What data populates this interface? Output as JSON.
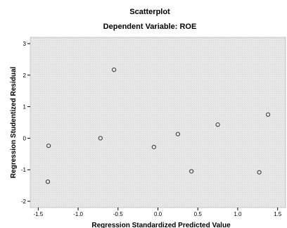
{
  "chart_data": {
    "type": "scatter",
    "title": "Scatterplot",
    "subtitle": "Dependent Variable: ROE",
    "xlabel": "Regression Standardized Predicted Value",
    "ylabel": "Regression Studentized Residual",
    "xlim": [
      -1.6,
      1.6
    ],
    "ylim": [
      -2.2,
      3.2
    ],
    "x_ticks": [
      -1.5,
      -1.0,
      -0.5,
      0.0,
      0.5,
      1.0,
      1.5
    ],
    "x_tick_labels": [
      "-1.5",
      "-1.0",
      "-0.5",
      "0.0",
      "0.5",
      "1.0",
      "1.5"
    ],
    "y_ticks": [
      -2,
      -1,
      0,
      1,
      2,
      3
    ],
    "y_tick_labels": [
      "-2",
      "-1",
      "0",
      "1",
      "2",
      "3"
    ],
    "points": [
      {
        "x": -1.37,
        "y": -0.24
      },
      {
        "x": -1.38,
        "y": -1.38
      },
      {
        "x": -0.72,
        "y": 0.0
      },
      {
        "x": -0.55,
        "y": 2.17
      },
      {
        "x": -0.05,
        "y": -0.28
      },
      {
        "x": 0.25,
        "y": 0.13
      },
      {
        "x": 0.42,
        "y": -1.05
      },
      {
        "x": 0.75,
        "y": 0.43
      },
      {
        "x": 1.27,
        "y": -1.08
      },
      {
        "x": 1.38,
        "y": 0.75
      }
    ],
    "grid": false,
    "colors": {
      "plot_background": "#e8e8e8",
      "marker": "#333333"
    }
  }
}
